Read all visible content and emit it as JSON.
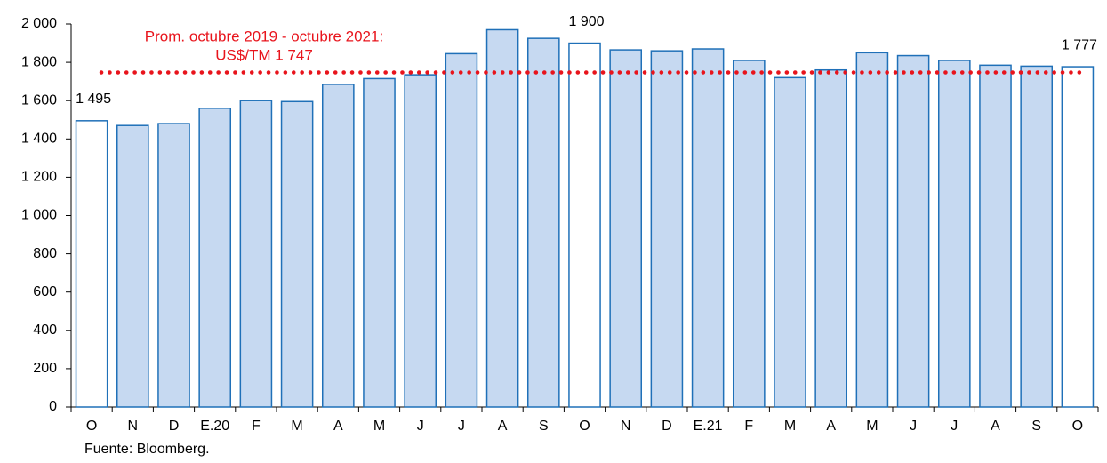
{
  "chart_data": {
    "type": "bar",
    "categories": [
      "O",
      "N",
      "D",
      "E.20",
      "F",
      "M",
      "A",
      "M",
      "J",
      "J",
      "A",
      "S",
      "O",
      "N",
      "D",
      "E.21",
      "F",
      "M",
      "A",
      "M",
      "J",
      "J",
      "A",
      "S",
      "O"
    ],
    "values": [
      1495,
      1470,
      1480,
      1560,
      1600,
      1595,
      1685,
      1715,
      1735,
      1845,
      1970,
      1925,
      1900,
      1865,
      1860,
      1870,
      1810,
      1720,
      1760,
      1850,
      1835,
      1810,
      1785,
      1780,
      1777
    ],
    "value_labels": [
      "1 495",
      null,
      null,
      null,
      null,
      null,
      null,
      null,
      null,
      null,
      null,
      null,
      "1 900",
      null,
      null,
      null,
      null,
      null,
      null,
      null,
      null,
      null,
      null,
      null,
      "1 777"
    ],
    "colors": [
      "#ffffff",
      "#c6d9f1",
      "#c6d9f1",
      "#c6d9f1",
      "#c6d9f1",
      "#c6d9f1",
      "#c6d9f1",
      "#c6d9f1",
      "#c6d9f1",
      "#c6d9f1",
      "#c6d9f1",
      "#c6d9f1",
      "#ffffff",
      "#c6d9f1",
      "#c6d9f1",
      "#c6d9f1",
      "#c6d9f1",
      "#c6d9f1",
      "#c6d9f1",
      "#c6d9f1",
      "#c6d9f1",
      "#c6d9f1",
      "#c6d9f1",
      "#c6d9f1",
      "#ffffff"
    ],
    "border_color": "#1f70b8",
    "ylim": [
      0,
      2000
    ],
    "yticks": [
      0,
      200,
      400,
      600,
      800,
      {
        "value": 1000,
        "label": "1 000"
      },
      {
        "value": 1200,
        "label": "1 200"
      },
      {
        "value": 1400,
        "label": "1 400"
      },
      {
        "value": 1600,
        "label": "1 600"
      },
      {
        "value": 1800,
        "label": "1 800"
      },
      {
        "value": 2000,
        "label": "2 000"
      }
    ],
    "reference_line": {
      "value": 1747,
      "color": "#e8141c",
      "label": [
        "Prom. octubre 2019 - octubre 2021:",
        "US$/TM 1 747"
      ]
    },
    "source": "Fuente: Bloomberg."
  }
}
